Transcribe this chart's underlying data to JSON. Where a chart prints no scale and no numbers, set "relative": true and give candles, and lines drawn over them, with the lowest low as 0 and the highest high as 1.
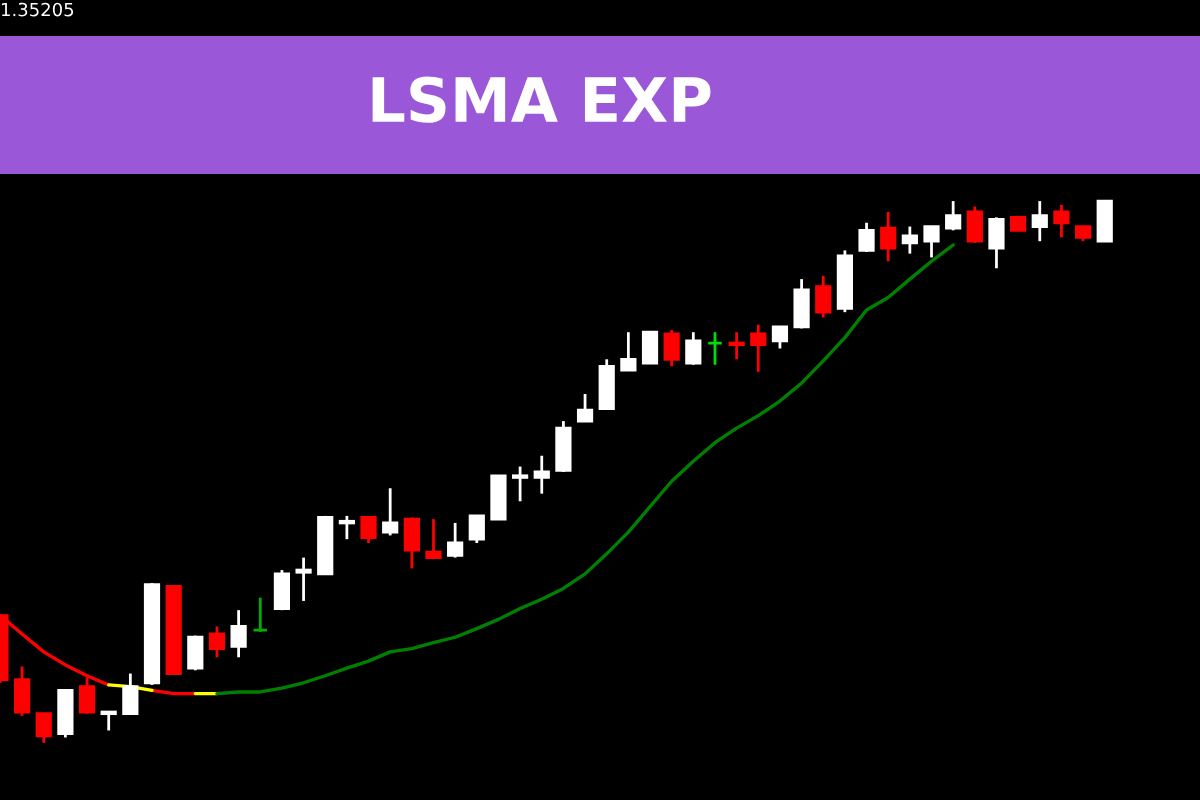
{
  "chart_data": {
    "type": "candlestick",
    "title": "LSMA EXP",
    "annotations": [
      "1.35205"
    ],
    "relative": true,
    "categories": [
      null,
      null,
      null,
      null,
      null,
      null,
      null,
      null,
      null,
      null,
      null,
      null,
      null,
      null,
      null,
      null,
      null,
      null,
      null,
      null,
      null,
      null,
      null,
      null,
      null,
      null,
      null,
      null,
      null,
      null,
      null,
      null,
      null,
      null,
      null,
      null,
      null,
      null,
      null,
      null,
      null,
      null,
      null,
      null,
      null,
      null,
      null,
      null,
      null,
      null,
      null,
      null
    ],
    "ohlc": [
      [
        0.235,
        0.235,
        0.111,
        0.117
      ],
      [
        0.117,
        0.141,
        0.05,
        0.057
      ],
      [
        0.054,
        0.054,
        0,
        0.013
      ],
      [
        0.017,
        0.097,
        0.01,
        0.097
      ],
      [
        0.104,
        0.121,
        0.054,
        0.057
      ],
      [
        0.054,
        0.057,
        0.023,
        0.057
      ],
      [
        0.054,
        0.128,
        0.054,
        0.104
      ],
      [
        0.111,
        0.295,
        0.107,
        0.292
      ],
      [
        0.289,
        0.289,
        0.128,
        0.128
      ],
      [
        0.138,
        0.198,
        0.134,
        0.195
      ],
      [
        0.201,
        0.215,
        0.158,
        0.174
      ],
      [
        0.178,
        0.245,
        0.158,
        0.215
      ],
      [
        0.208,
        0.268,
        0.205,
        0.208
      ],
      [
        0.248,
        0.319,
        0.245,
        0.312
      ],
      [
        0.315,
        0.342,
        0.262,
        0.319
      ],
      [
        0.312,
        0.419,
        0.312,
        0.416
      ],
      [
        0.406,
        0.419,
        0.376,
        0.409
      ],
      [
        0.416,
        0.416,
        0.369,
        0.379
      ],
      [
        0.389,
        0.47,
        0.383,
        0.406
      ],
      [
        0.413,
        0.416,
        0.322,
        0.356
      ],
      [
        0.352,
        0.413,
        0.342,
        0.342
      ],
      [
        0.346,
        0.406,
        0.342,
        0.369
      ],
      [
        0.376,
        0.419,
        0.369,
        0.419
      ],
      [
        0.413,
        0.493,
        0.413,
        0.493
      ],
      [
        0.49,
        0.51,
        0.446,
        0.493
      ],
      [
        0.49,
        0.53,
        0.46,
        0.5
      ],
      [
        0.503,
        0.594,
        0.5,
        0.581
      ],
      [
        0.594,
        0.644,
        0.594,
        0.614
      ],
      [
        0.617,
        0.708,
        0.617,
        0.695
      ],
      [
        0.688,
        0.758,
        0.688,
        0.708
      ],
      [
        0.701,
        0.758,
        0.701,
        0.758
      ],
      [
        0.755,
        0.762,
        0.695,
        0.708
      ],
      [
        0.701,
        0.758,
        0.698,
        0.742
      ],
      [
        0.738,
        0.758,
        0.698,
        0.738
      ],
      [
        0.738,
        0.758,
        0.708,
        0.735
      ],
      [
        0.755,
        0.772,
        0.685,
        0.735
      ],
      [
        0.742,
        0.768,
        0.728,
        0.768
      ],
      [
        0.768,
        0.856,
        0.765,
        0.836
      ],
      [
        0.842,
        0.862,
        0.785,
        0.795
      ],
      [
        0.802,
        0.909,
        0.795,
        0.899
      ],
      [
        0.909,
        0.96,
        0.906,
        0.946
      ],
      [
        0.95,
        0.98,
        0.889,
        0.913
      ],
      [
        0.923,
        0.953,
        0.903,
        0.936
      ],
      [
        0.926,
        0.953,
        0.896,
        0.953
      ],
      [
        0.95,
        1,
        0.946,
        0.973
      ],
      [
        0.98,
        0.99,
        0.923,
        0.926
      ],
      [
        0.913,
        0.97,
        0.876,
        0.966
      ],
      [
        0.97,
        0.973,
        0.946,
        0.946
      ],
      [
        0.953,
        1,
        0.926,
        0.973
      ],
      [
        0.98,
        0.993,
        0.933,
        0.96
      ],
      [
        0.953,
        0.953,
        0.926,
        0.933
      ],
      [
        0.926,
        1,
        0.926,
        1
      ]
    ],
    "colors": [
      "#ff0000",
      "#ff0000",
      "#ff0000",
      "#ffffff",
      "#ff0000",
      "#ffffff",
      "#ffffff",
      "#ffffff",
      "#ff0000",
      "#ffffff",
      "#ff0000",
      "#ffffff",
      "#00b000",
      "#ffffff",
      "#ffffff",
      "#ffffff",
      "#ffffff",
      "#ff0000",
      "#ffffff",
      "#ff0000",
      "#ff0000",
      "#ffffff",
      "#ffffff",
      "#ffffff",
      "#ffffff",
      "#ffffff",
      "#ffffff",
      "#ffffff",
      "#ffffff",
      "#ffffff",
      "#ffffff",
      "#ff0000",
      "#ffffff",
      "#00e000",
      "#ff0000",
      "#ff0000",
      "#ffffff",
      "#ffffff",
      "#ff0000",
      "#ffffff",
      "#ffffff",
      "#ff0000",
      "#ffffff",
      "#ffffff",
      "#ffffff",
      "#ff0000",
      "#ffffff",
      "#ff0000",
      "#ffffff",
      "#ff0000",
      "#ff0000",
      "#ffffff"
    ],
    "series": [
      {
        "type": "line",
        "color": "#ff0000",
        "values": [
          0.235,
          0.201,
          0.168,
          0.144,
          0.124,
          0.107,
          null,
          0.097,
          0.091,
          0.091,
          null,
          null,
          null,
          null,
          null,
          null,
          null,
          null,
          null,
          null,
          null,
          null,
          null,
          null,
          null,
          null,
          null,
          null,
          null,
          null,
          null,
          null,
          null,
          null,
          null,
          null,
          null,
          null,
          null,
          null,
          null,
          null,
          null,
          null,
          null,
          null,
          null,
          null,
          null,
          null,
          null,
          null
        ]
      },
      {
        "type": "line",
        "color": "#ffff00",
        "values": [
          null,
          null,
          null,
          null,
          null,
          0.107,
          0.104,
          0.097,
          null,
          0.091,
          0.091,
          null,
          null,
          null,
          null,
          null,
          null,
          null,
          null,
          null,
          null,
          null,
          null,
          null,
          null,
          null,
          null,
          null,
          null,
          null,
          null,
          null,
          null,
          null,
          null,
          null,
          null,
          null,
          null,
          null,
          null,
          null,
          null,
          null,
          null,
          null,
          null,
          null,
          null,
          null,
          null,
          null
        ]
      },
      {
        "type": "line",
        "color": "#008000",
        "values": [
          null,
          null,
          null,
          null,
          null,
          null,
          null,
          null,
          null,
          null,
          0.091,
          0.094,
          0.094,
          0.101,
          0.111,
          0.124,
          0.138,
          0.151,
          0.168,
          0.174,
          0.185,
          0.195,
          0.211,
          0.228,
          0.248,
          0.265,
          0.285,
          0.312,
          0.349,
          0.389,
          0.436,
          0.483,
          0.52,
          0.554,
          0.581,
          0.604,
          0.631,
          0.664,
          0.705,
          0.748,
          0.799,
          0.822,
          0.856,
          0.889,
          0.919,
          null,
          null,
          null,
          null,
          null,
          null,
          null
        ]
      }
    ]
  }
}
